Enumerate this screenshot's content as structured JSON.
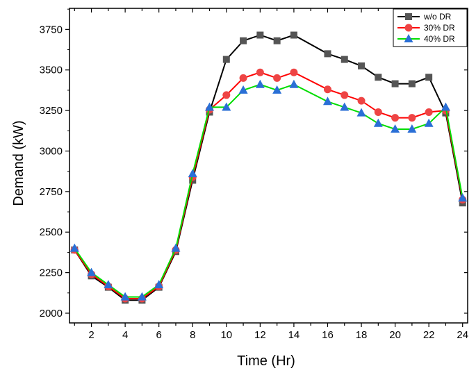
{
  "chart_data": {
    "type": "line",
    "title": "",
    "xlabel": "Time (Hr)",
    "ylabel": "Demand (kW)",
    "xlim": [
      0.7,
      24.3
    ],
    "ylim": [
      1940,
      3880
    ],
    "x": [
      1,
      2,
      3,
      4,
      5,
      6,
      7,
      8,
      9,
      10,
      11,
      12,
      13,
      14,
      16,
      17,
      18,
      19,
      20,
      21,
      22,
      23,
      24
    ],
    "x_ticks": [
      2,
      4,
      6,
      8,
      10,
      12,
      14,
      16,
      18,
      20,
      22,
      24
    ],
    "y_ticks": [
      2000,
      2250,
      2500,
      2750,
      3000,
      3250,
      3500,
      3750
    ],
    "legend_position": "top-right",
    "series": [
      {
        "name": "w/o DR",
        "color": "#000000",
        "marker_color": "#555555",
        "marker": "square",
        "values": [
          2390,
          2230,
          2160,
          2080,
          2080,
          2160,
          2380,
          2820,
          3240,
          3565,
          3680,
          3715,
          3680,
          3715,
          3600,
          3565,
          3525,
          3455,
          3415,
          3415,
          3455,
          3235,
          2680
        ]
      },
      {
        "name": "30% DR",
        "color": "#ff0000",
        "marker_color": "#ee4444",
        "marker": "circle",
        "values": [
          2390,
          2240,
          2165,
          2090,
          2090,
          2165,
          2390,
          2840,
          3255,
          3345,
          3450,
          3485,
          3450,
          3485,
          3380,
          3345,
          3310,
          3240,
          3205,
          3205,
          3240,
          3250,
          2700
        ]
      },
      {
        "name": "40% DR",
        "color": "#00dd00",
        "marker_color": "#2a6fd6",
        "marker": "triangle",
        "values": [
          2400,
          2250,
          2175,
          2100,
          2100,
          2175,
          2400,
          2860,
          3270,
          3270,
          3375,
          3410,
          3375,
          3410,
          3305,
          3270,
          3235,
          3170,
          3135,
          3135,
          3170,
          3270,
          2710
        ]
      }
    ]
  }
}
